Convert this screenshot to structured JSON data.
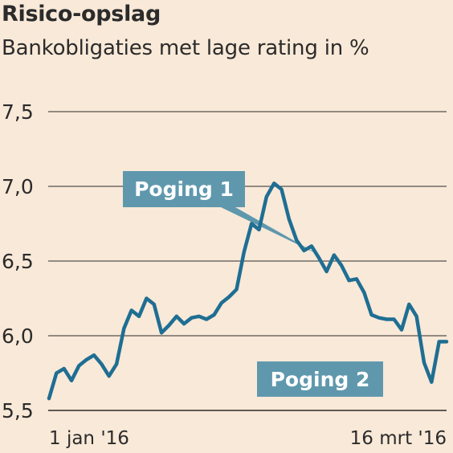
{
  "chart_data": {
    "type": "line",
    "title": "Risico-opslag",
    "subtitle": "Bankobligaties met lage rating in %",
    "y_ticks": [
      "7,5",
      "7,0",
      "6,5",
      "6,0",
      "5,5"
    ],
    "ylim": [
      5.5,
      7.5
    ],
    "x_labels": [
      "1 jan '16",
      "16 mrt '16"
    ],
    "grid": true,
    "line_color": "#1f6e93",
    "annotation_color": "#5f98ad",
    "background_color": "#f9e9d8",
    "annotations": [
      {
        "label": "Poging 1",
        "at_index": 36
      },
      {
        "label": "Poging 2",
        "at_index": 62
      }
    ],
    "series": [
      {
        "values": [
          5.58,
          5.75,
          5.78,
          5.7,
          5.8,
          5.84,
          5.87,
          5.81,
          5.73,
          5.81,
          6.05,
          6.17,
          6.13,
          6.25,
          6.21,
          6.02,
          6.07,
          6.13,
          6.08,
          6.12,
          6.13,
          6.11,
          6.14,
          6.22,
          6.26,
          6.31,
          6.56,
          6.75,
          6.71,
          6.93,
          7.02,
          6.98,
          6.78,
          6.64,
          6.57,
          6.6,
          6.52,
          6.43,
          6.54,
          6.47,
          6.37,
          6.38,
          6.29,
          6.14,
          6.12,
          6.11,
          6.11,
          6.04,
          6.21,
          6.13,
          5.82,
          5.69,
          5.96,
          5.96
        ]
      }
    ]
  }
}
